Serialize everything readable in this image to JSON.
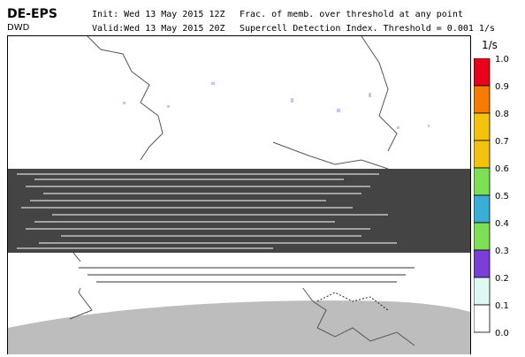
{
  "header": {
    "model": "DE-EPS",
    "center": "DWD",
    "init": "Init:  Wed  13  May  2015  12Z",
    "valid": "Valid:Wed  13  May  2015  20Z",
    "product": "Frac. of memb. over threshold at any point",
    "index": "Supercell Detection Index. Threshold = 0.001 1/s"
  },
  "colorbar": {
    "unit": "1/s",
    "ticks": [
      "1.0",
      "0.9",
      "0.8",
      "0.7",
      "0.6",
      "0.5",
      "0.4",
      "0.3",
      "0.2",
      "0.1",
      "0.0"
    ],
    "colors": [
      "#e8001c",
      "#f57c00",
      "#f4c20d",
      "#f4c20d",
      "#7cdf55",
      "#3aaed4",
      "#7cdf55",
      "#7b3fd9",
      "#dff8f2",
      "#ffffff"
    ]
  },
  "colors": {
    "land_grey": "#bdbdbd",
    "glitch": "#444444",
    "coast": "#555555"
  }
}
